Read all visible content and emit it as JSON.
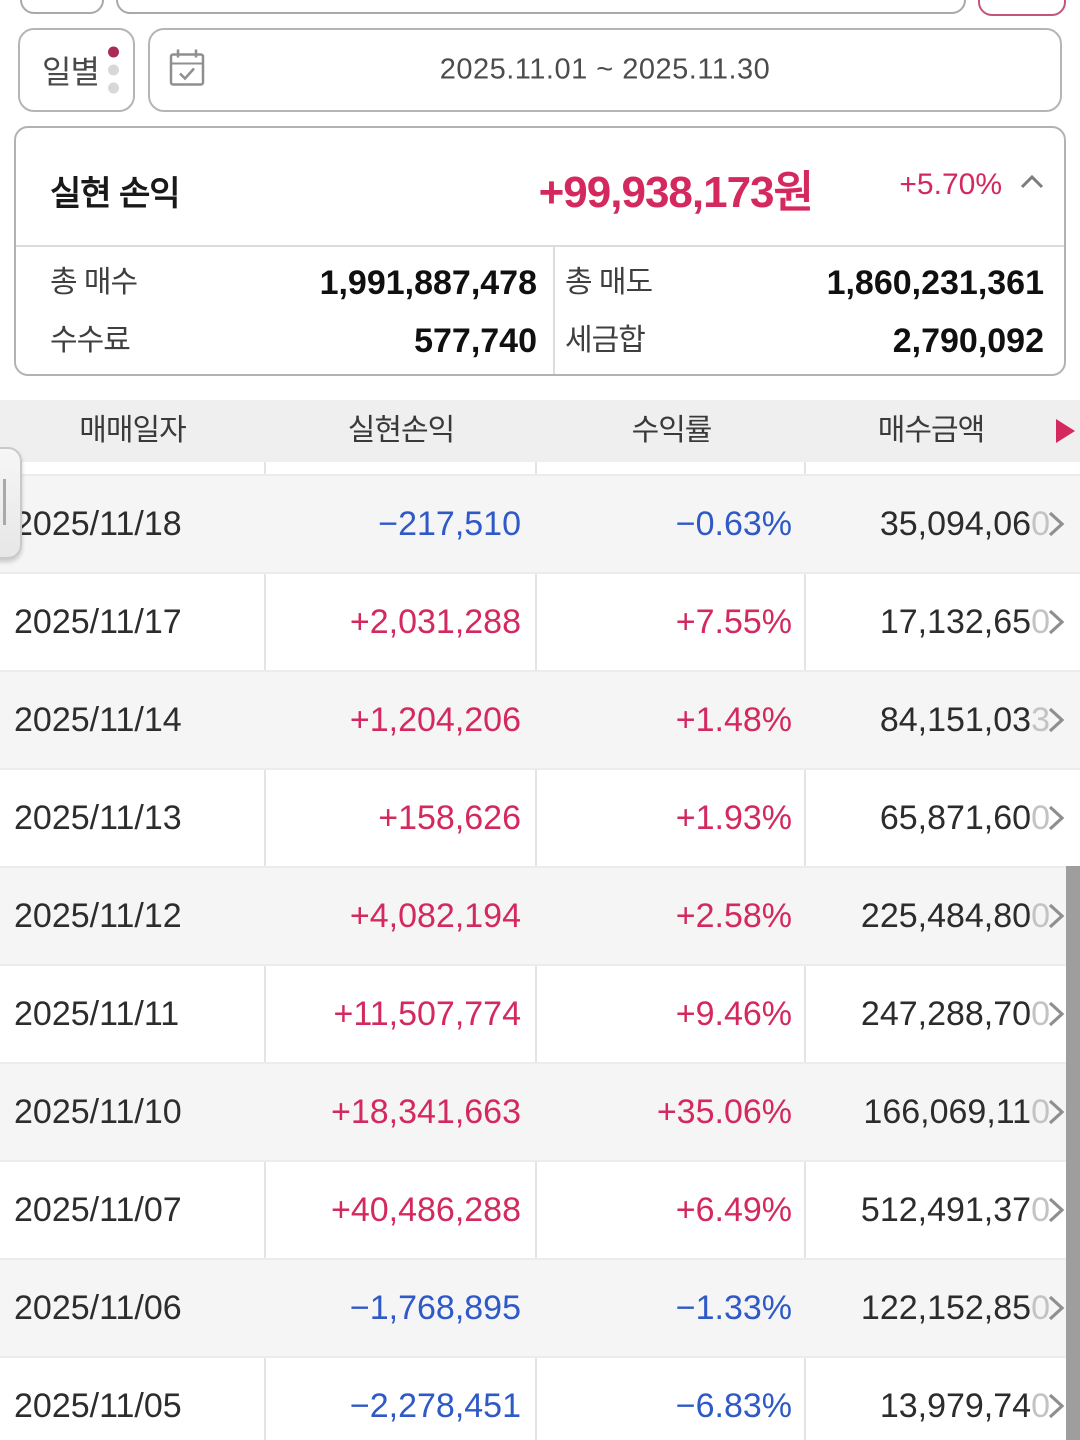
{
  "controls": {
    "period_button": {
      "label": "일별",
      "dot_colors": [
        "#aa2c55",
        "#d8d8d8",
        "#d8d8d8"
      ]
    },
    "date_range": {
      "value": "2025.11.01 ~ 2025.11.30",
      "icon": "calendar-check-icon"
    }
  },
  "summary": {
    "title": "실현 손익",
    "total_pl": "+99,938,173원",
    "total_pl_pct": "+5.70%",
    "collapse_icon": "chevron-up-icon",
    "stats": [
      {
        "label": "총 매수",
        "value": "1,991,887,478"
      },
      {
        "label": "총 매도",
        "value": "1,860,231,361"
      },
      {
        "label": "수수료",
        "value": "577,740"
      },
      {
        "label": "세금합",
        "value": "2,790,092"
      }
    ]
  },
  "table": {
    "columns": [
      "매매일자",
      "실현손익",
      "수익률",
      "매수금액"
    ],
    "more_arrow_icon": "triangle-right-icon",
    "rows": [
      {
        "date": "2025/11/18",
        "pl": "−217,510",
        "rate": "−0.63%",
        "buy": "35,094,060",
        "dir": "loss"
      },
      {
        "date": "2025/11/17",
        "pl": "+2,031,288",
        "rate": "+7.55%",
        "buy": "17,132,650",
        "dir": "gain"
      },
      {
        "date": "2025/11/14",
        "pl": "+1,204,206",
        "rate": "+1.48%",
        "buy": "84,151,033",
        "dir": "gain"
      },
      {
        "date": "2025/11/13",
        "pl": "+158,626",
        "rate": "+1.93%",
        "buy": "65,871,600",
        "dir": "gain"
      },
      {
        "date": "2025/11/12",
        "pl": "+4,082,194",
        "rate": "+2.58%",
        "buy": "225,484,800",
        "dir": "gain"
      },
      {
        "date": "2025/11/11",
        "pl": "+11,507,774",
        "rate": "+9.46%",
        "buy": "247,288,700",
        "dir": "gain"
      },
      {
        "date": "2025/11/10",
        "pl": "+18,341,663",
        "rate": "+35.06%",
        "buy": "166,069,110",
        "dir": "gain"
      },
      {
        "date": "2025/11/07",
        "pl": "+40,486,288",
        "rate": "+6.49%",
        "buy": "512,491,370",
        "dir": "gain"
      },
      {
        "date": "2025/11/06",
        "pl": "−1,768,895",
        "rate": "−1.33%",
        "buy": "122,152,850",
        "dir": "loss"
      },
      {
        "date": "2025/11/05",
        "pl": "−2,278,451",
        "rate": "−6.83%",
        "buy": "13,979,740",
        "dir": "loss"
      }
    ]
  },
  "colors": {
    "gain": "#d4295e",
    "loss": "#2e59c6",
    "accent": "#d4295e"
  }
}
